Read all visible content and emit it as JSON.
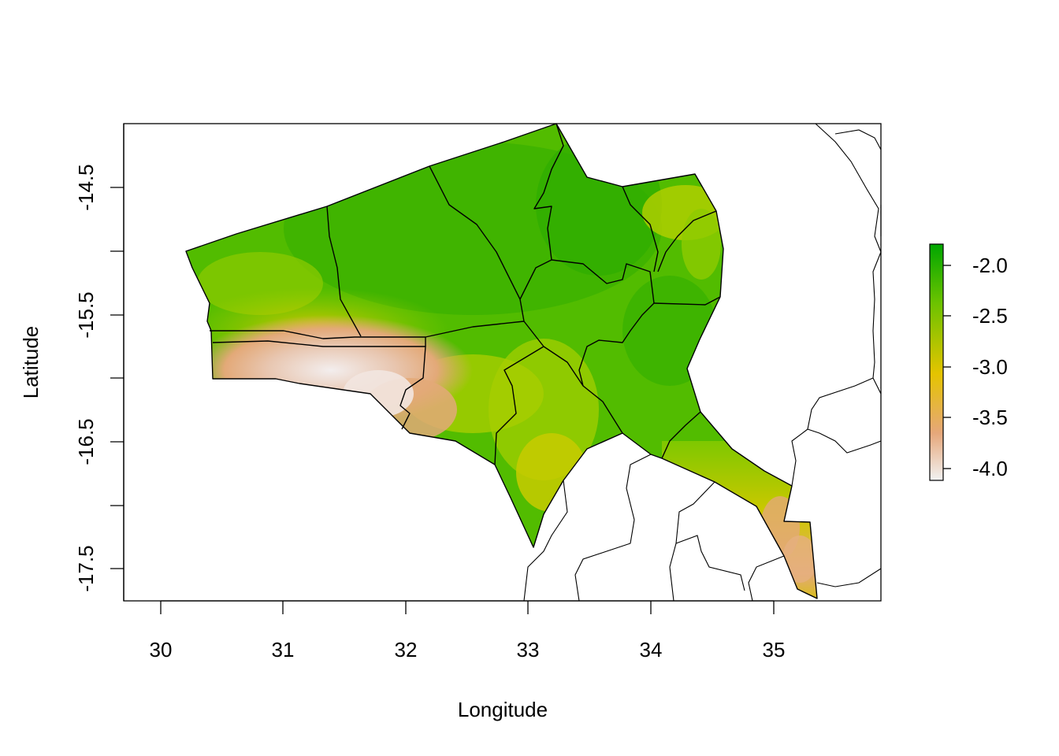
{
  "chart_data": {
    "type": "heatmap",
    "title": "",
    "xlabel": "Longitude",
    "ylabel": "Latitude",
    "xlim": [
      29.7,
      35.9
    ],
    "ylim": [
      -17.75,
      -13.98
    ],
    "x_ticks": [
      "30",
      "31",
      "32",
      "33",
      "34",
      "35"
    ],
    "y_ticks": [
      "-14.5",
      "-15.5",
      "-16.5",
      "-17.5"
    ],
    "legend": {
      "position": "right",
      "range": [
        -4.1,
        -1.75
      ],
      "ticks": [
        "-2.0",
        "-2.5",
        "-3.0",
        "-3.5",
        "-4.0"
      ],
      "colors": [
        "#f2f2f2",
        "#e6a77a",
        "#e5c400",
        "#6cc300",
        "#00a600"
      ]
    },
    "boxed": true
  }
}
